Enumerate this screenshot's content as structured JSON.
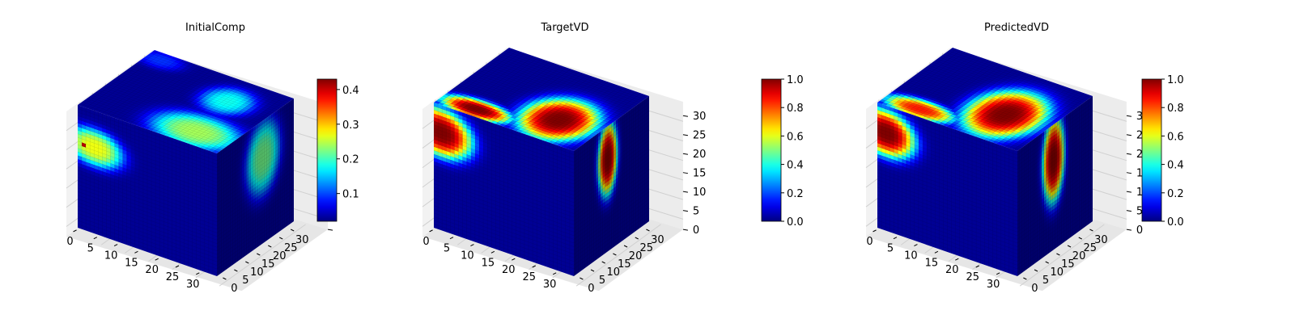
{
  "chart_data": [
    {
      "type": "heatmap",
      "title": "InitialComp",
      "colormap": "jet",
      "colorbar": {
        "min": 0.02,
        "max": 0.43,
        "ticks": [
          "0.1",
          "0.2",
          "0.3",
          "0.4"
        ]
      },
      "x_ticks": [
        "0",
        "5",
        "10",
        "15",
        "20",
        "25",
        "30"
      ],
      "y_ticks": [
        "0",
        "5",
        "10",
        "15",
        "20",
        "25",
        "30"
      ],
      "z_ticks": [],
      "blobs": {
        "front": [
          {
            "u": 0.12,
            "v": 0.3,
            "ru": 0.26,
            "rv": 0.19,
            "val": 0.27
          },
          {
            "u": 0.05,
            "v": 0.3,
            "ru": 0.04,
            "rv": 0.03,
            "val": 0.43
          }
        ],
        "top": [
          {
            "u": 0.75,
            "v": 0.82,
            "ru": 0.38,
            "rv": 0.3,
            "val": 0.24
          },
          {
            "u": 0.7,
            "v": 0.32,
            "ru": 0.22,
            "rv": 0.25,
            "val": 0.18
          },
          {
            "u": 0.1,
            "v": 0.1,
            "ru": 0.2,
            "rv": 0.15,
            "val": 0.09
          }
        ],
        "side": [
          {
            "u": 0.6,
            "v": 0.3,
            "ru": 0.28,
            "rv": 0.38,
            "val": 0.22
          }
        ]
      }
    },
    {
      "type": "heatmap",
      "title": "TargetVD",
      "colormap": "jet",
      "colorbar": {
        "min": 0.0,
        "max": 1.0,
        "ticks": [
          "0.0",
          "0.2",
          "0.4",
          "0.6",
          "0.8",
          "1.0"
        ]
      },
      "x_ticks": [
        "0",
        "5",
        "10",
        "15",
        "20",
        "25",
        "30"
      ],
      "y_ticks": [
        "0",
        "5",
        "10",
        "15",
        "20",
        "25",
        "30"
      ],
      "z_ticks": [
        "0",
        "5",
        "10",
        "15",
        "20",
        "25",
        "30"
      ],
      "blobs": {
        "front": [
          {
            "u": 0.05,
            "v": 0.22,
            "ru": 0.28,
            "rv": 0.24,
            "val": 1.0
          }
        ],
        "top": [
          {
            "u": 0.72,
            "v": 0.68,
            "ru": 0.3,
            "rv": 0.4,
            "val": 1.0
          },
          {
            "u": 0.25,
            "v": 0.9,
            "ru": 0.3,
            "rv": 0.16,
            "val": 1.0
          }
        ],
        "side": [
          {
            "u": 0.45,
            "v": 0.26,
            "ru": 0.16,
            "rv": 0.36,
            "val": 1.0
          }
        ]
      }
    },
    {
      "type": "heatmap",
      "title": "PredictedVD",
      "colormap": "jet",
      "colorbar": {
        "min": 0.0,
        "max": 1.0,
        "ticks": [
          "0.0",
          "0.2",
          "0.4",
          "0.6",
          "0.8",
          "1.0"
        ]
      },
      "x_ticks": [
        "0",
        "5",
        "10",
        "15",
        "20",
        "25",
        "30"
      ],
      "y_ticks": [
        "0",
        "5",
        "10",
        "15",
        "20",
        "25",
        "30"
      ],
      "z_ticks": [
        "0",
        "5",
        "10",
        "15",
        "20",
        "25",
        "30"
      ],
      "blobs": {
        "front": [
          {
            "u": 0.06,
            "v": 0.22,
            "ru": 0.26,
            "rv": 0.23,
            "val": 1.0
          }
        ],
        "top": [
          {
            "u": 0.7,
            "v": 0.6,
            "ru": 0.3,
            "rv": 0.46,
            "val": 1.0
          },
          {
            "u": 0.25,
            "v": 0.9,
            "ru": 0.3,
            "rv": 0.16,
            "val": 0.85
          }
        ],
        "side": [
          {
            "u": 0.48,
            "v": 0.28,
            "ru": 0.18,
            "rv": 0.42,
            "val": 1.0
          }
        ]
      }
    }
  ]
}
